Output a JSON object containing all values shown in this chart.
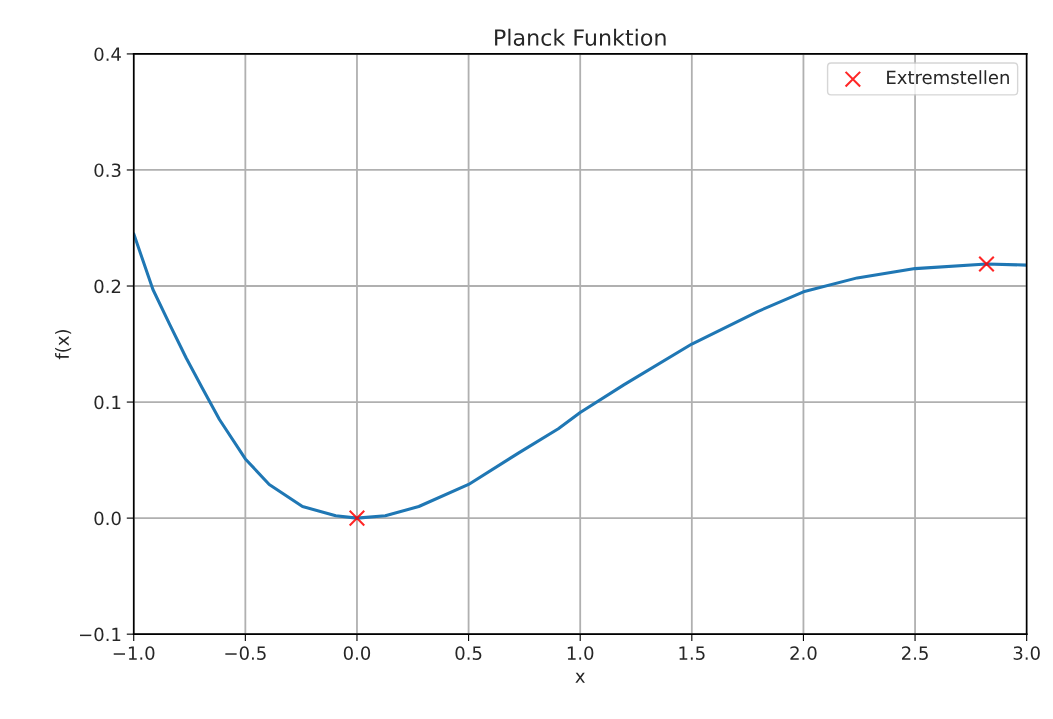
{
  "chart_data": {
    "type": "line",
    "title": "Planck Funktion",
    "xlabel": "x",
    "ylabel": "f(x)",
    "xlim": [
      -1.0,
      3.0
    ],
    "xticks": [
      {
        "value": -1.0,
        "label": "−1.0"
      },
      {
        "value": -0.5,
        "label": "−0.5"
      },
      {
        "value": 0.0,
        "label": "0.0"
      },
      {
        "value": 0.5,
        "label": "0.5"
      },
      {
        "value": 1.0,
        "label": "1.0"
      },
      {
        "value": 1.5,
        "label": "1.5"
      },
      {
        "value": 2.0,
        "label": "2.0"
      },
      {
        "value": 2.5,
        "label": "2.5"
      },
      {
        "value": 3.0,
        "label": "3.0"
      }
    ],
    "ylim": [
      -0.1,
      0.4
    ],
    "yticks": [
      {
        "value": -0.1,
        "label": "−0.1"
      },
      {
        "value": 0.0,
        "label": "0.0"
      },
      {
        "value": 0.1,
        "label": "0.1"
      },
      {
        "value": 0.2,
        "label": "0.2"
      },
      {
        "value": 0.3,
        "label": "0.3"
      },
      {
        "value": 0.4,
        "label": "0.4"
      }
    ],
    "grid": true,
    "legend": "top right",
    "series": [
      {
        "color": "#1f77b4",
        "marker": "none",
        "x": [
          -1.0,
          -0.914,
          -0.839,
          -0.765,
          -0.69,
          -0.616,
          -0.5,
          -0.393,
          -0.244,
          -0.095,
          0.0,
          0.127,
          0.277,
          0.5,
          0.723,
          0.902,
          1.0,
          1.197,
          1.5,
          1.795,
          2.0,
          2.241,
          2.5,
          2.82,
          3.0
        ],
        "values": [
          0.245,
          0.197,
          0.167,
          0.138,
          0.111,
          0.085,
          0.051,
          0.029,
          0.01,
          0.002,
          0.0,
          0.002,
          0.01,
          0.029,
          0.056,
          0.077,
          0.091,
          0.115,
          0.15,
          0.178,
          0.195,
          0.207,
          0.215,
          0.219,
          0.218
        ]
      },
      {
        "type": "scatter",
        "name": "Extremstellen",
        "color": "#ff0000",
        "marker": "cross",
        "x": [
          0.0,
          2.82
        ],
        "values": [
          0.0,
          0.219
        ]
      }
    ]
  }
}
